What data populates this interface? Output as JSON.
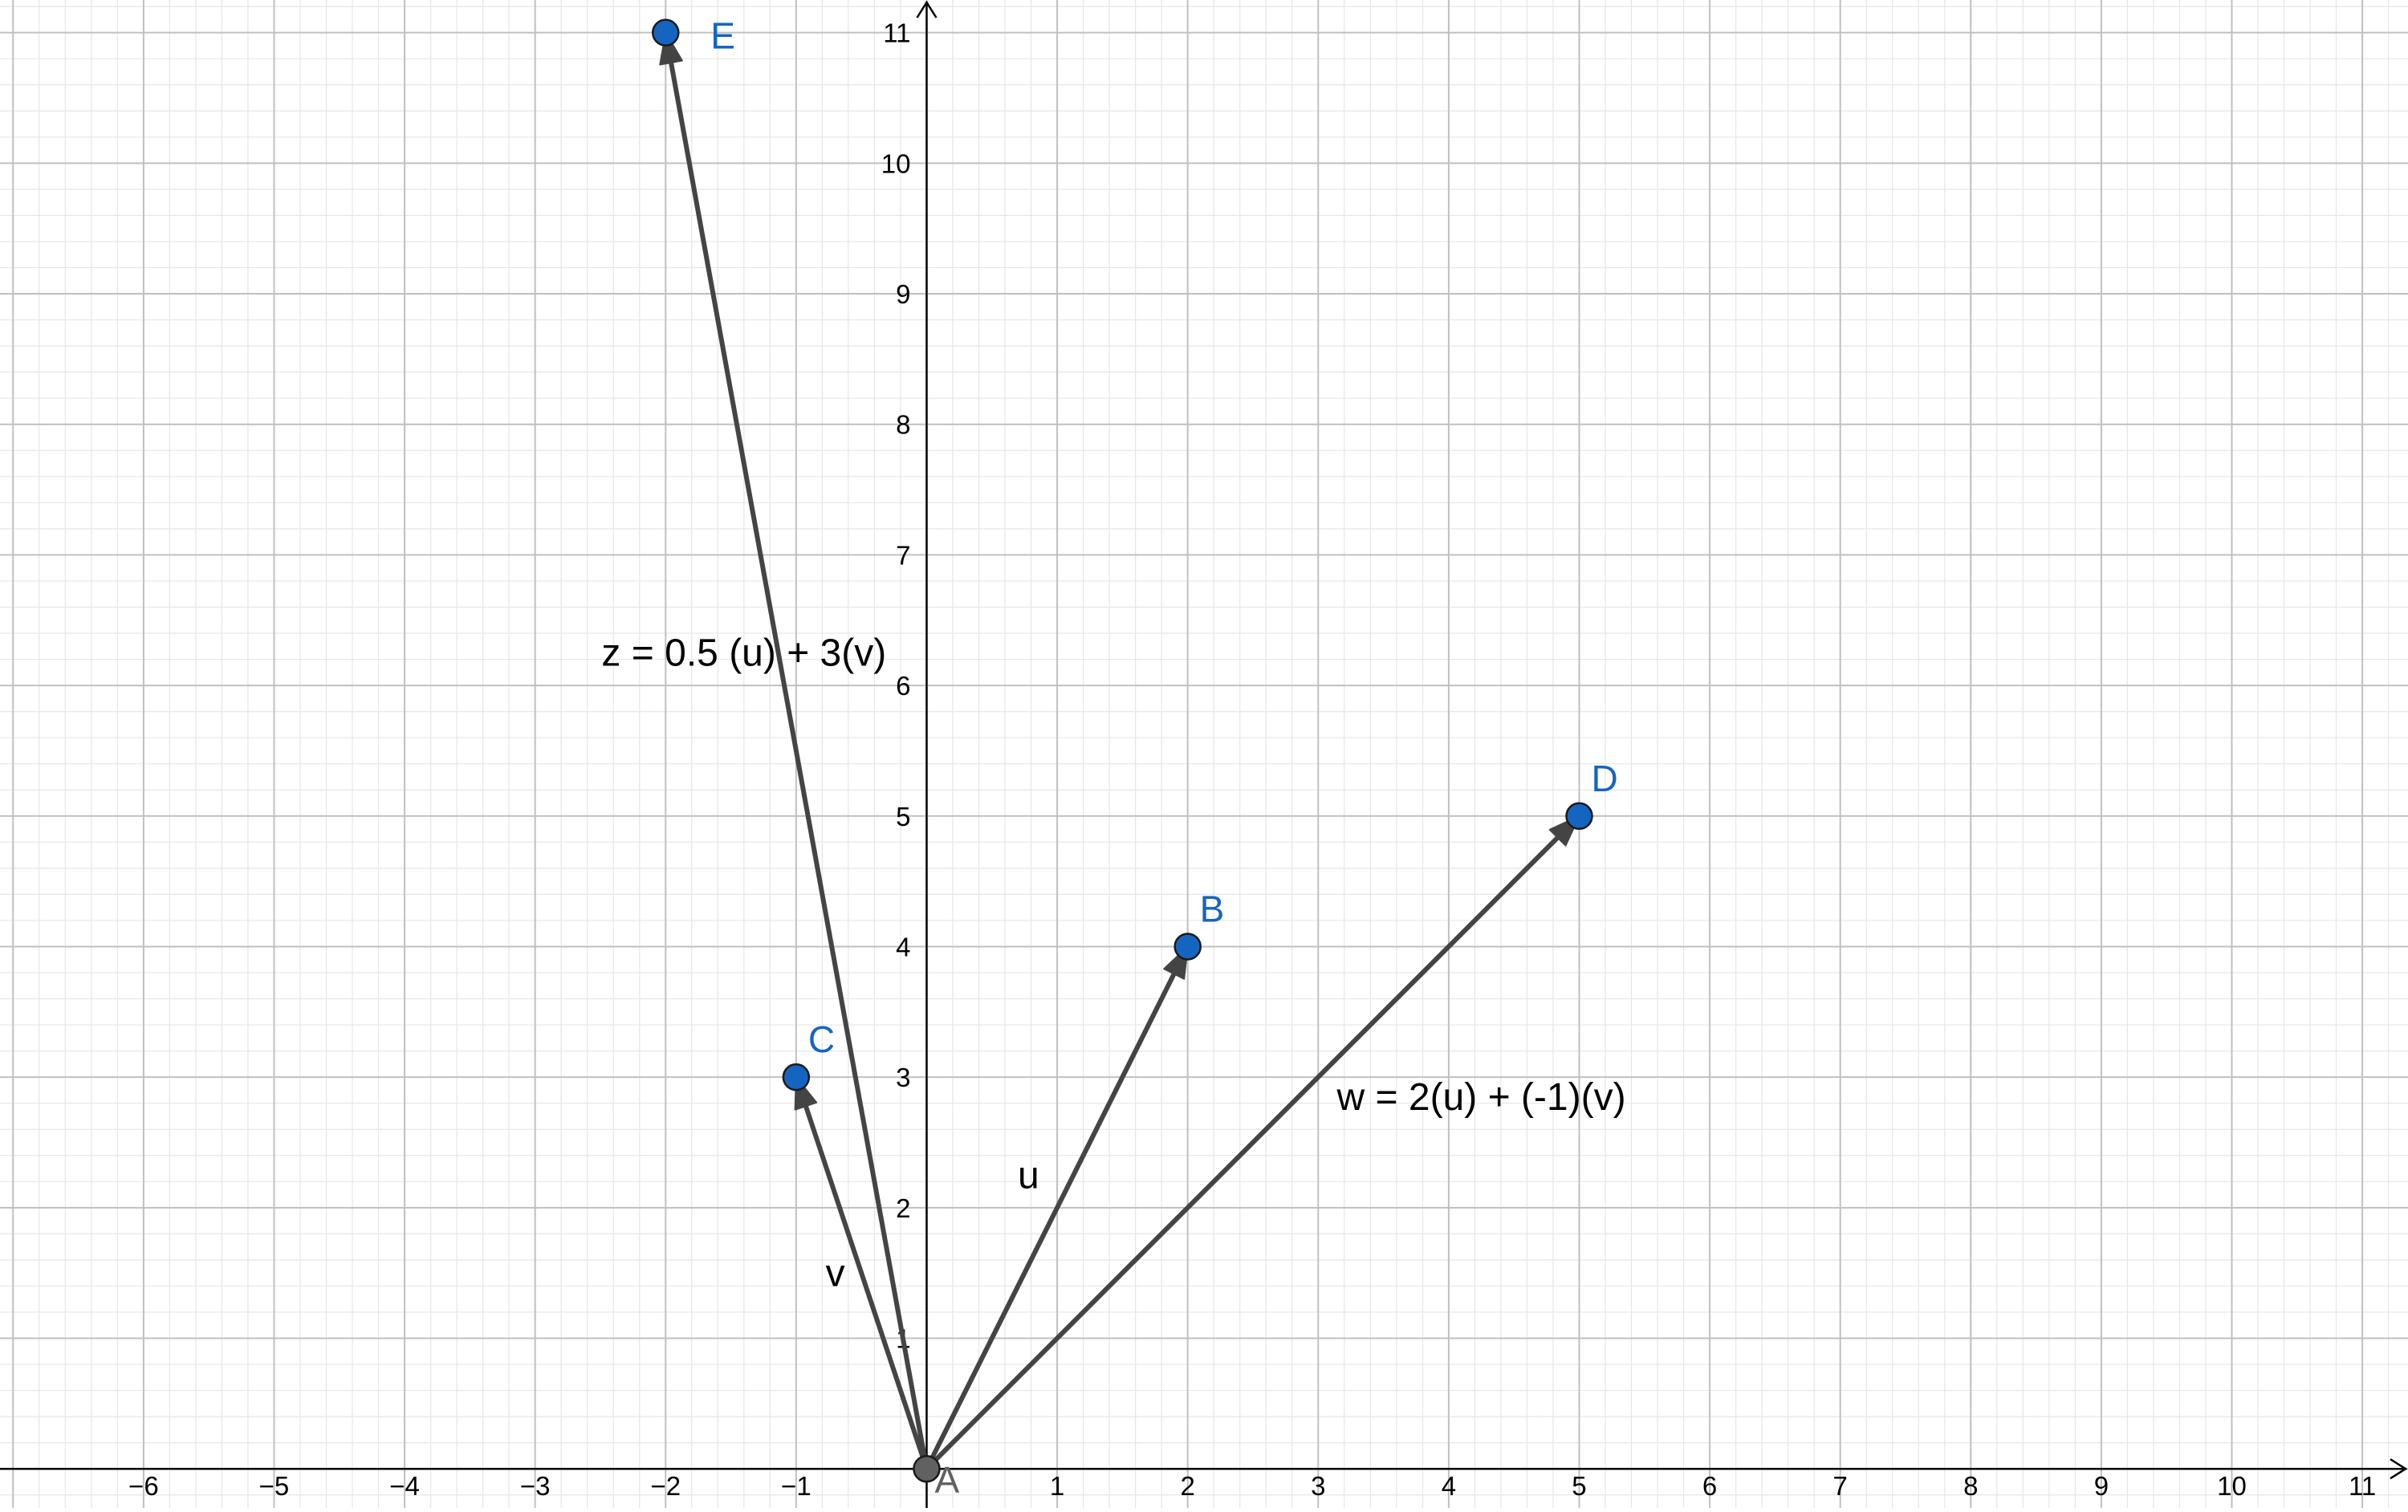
{
  "colors": {
    "background": "#ffffff",
    "minor_grid": "#e6e6e6",
    "major_grid": "#c0c0c0",
    "axis": "#000000",
    "vector": "#444444",
    "point_fill": "#1565c0",
    "point_label": "#1565c0",
    "origin_fill": "#616161",
    "origin_label": "#616161"
  },
  "axes": {
    "x_range": [
      -7.1,
      11.35
    ],
    "y_range": [
      -0.3,
      11.25
    ],
    "x_ticks": [
      -6,
      -5,
      -4,
      -3,
      -2,
      -1,
      1,
      2,
      3,
      4,
      5,
      6,
      7,
      8,
      9,
      10,
      11
    ],
    "y_ticks": [
      1,
      2,
      3,
      4,
      5,
      6,
      7,
      8,
      9,
      10,
      11
    ],
    "minor_step": 0.2,
    "grid": true
  },
  "points": [
    {
      "name": "A",
      "x": 0,
      "y": 0,
      "kind": "origin"
    },
    {
      "name": "B",
      "x": 2,
      "y": 4,
      "kind": "free"
    },
    {
      "name": "C",
      "x": -1,
      "y": 3,
      "kind": "free"
    },
    {
      "name": "D",
      "x": 5,
      "y": 5,
      "kind": "free"
    },
    {
      "name": "E",
      "x": -2,
      "y": 11,
      "kind": "free"
    }
  ],
  "vectors": [
    {
      "name": "u",
      "from": [
        0,
        0
      ],
      "to": [
        2,
        4
      ],
      "label": "u",
      "label_at": [
        0.78,
        2.15
      ]
    },
    {
      "name": "v",
      "from": [
        0,
        0
      ],
      "to": [
        -1,
        3
      ],
      "label": "v",
      "label_at": [
        -0.7,
        1.4
      ]
    },
    {
      "name": "w",
      "from": [
        0,
        0
      ],
      "to": [
        5,
        5
      ],
      "label": "w = 2(u) + (-1)(v)",
      "label_at": [
        4.25,
        2.75
      ]
    },
    {
      "name": "z",
      "from": [
        0,
        0
      ],
      "to": [
        -2,
        11
      ],
      "label": "z = 0.5 (u) + 3(v)",
      "label_at": [
        -1.4,
        6.15
      ]
    }
  ]
}
